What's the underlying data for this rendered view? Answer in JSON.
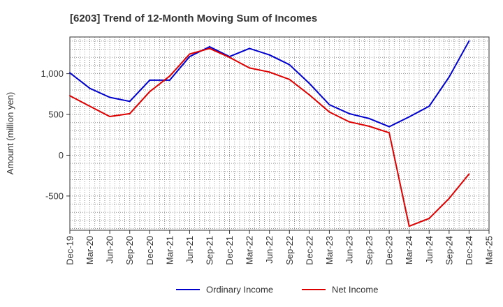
{
  "chart_data": {
    "type": "line",
    "title": "[6203]  Trend of 12-Month Moving Sum of Incomes",
    "xlabel": "",
    "ylabel": "Amount (million yen)",
    "categories": [
      "Dec-19",
      "Mar-20",
      "Jun-20",
      "Sep-20",
      "Dec-20",
      "Mar-21",
      "Jun-21",
      "Sep-21",
      "Dec-21",
      "Mar-22",
      "Jun-22",
      "Sep-22",
      "Dec-22",
      "Mar-23",
      "Jun-23",
      "Sep-23",
      "Dec-23",
      "Mar-24",
      "Jun-24",
      "Sep-24",
      "Dec-24",
      "Mar-25"
    ],
    "y_ticks": [
      -500,
      0,
      500,
      1000
    ],
    "y_tick_labels": [
      "-500",
      "0",
      "500",
      "1,000"
    ],
    "ylim": [
      -920,
      1450
    ],
    "grid": true,
    "legend_position": "bottom",
    "series": [
      {
        "name": "Ordinary Income",
        "color": "#0000cc",
        "values": [
          1010,
          820,
          710,
          660,
          920,
          920,
          1210,
          1330,
          1210,
          1310,
          1230,
          1110,
          880,
          620,
          510,
          450,
          350,
          470,
          600,
          960,
          1400,
          null
        ]
      },
      {
        "name": "Net Income",
        "color": "#dd0000",
        "values": [
          730,
          600,
          475,
          510,
          780,
          970,
          1240,
          1310,
          1200,
          1070,
          1020,
          930,
          740,
          530,
          410,
          355,
          275,
          -870,
          -775,
          -530,
          -230,
          null
        ]
      }
    ]
  }
}
